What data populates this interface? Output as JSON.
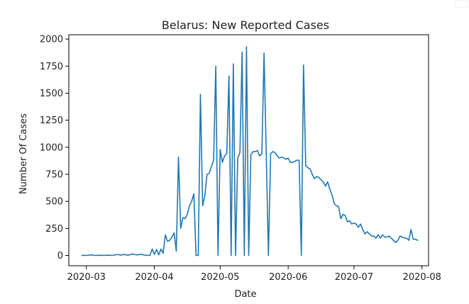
{
  "chart_data": {
    "type": "line",
    "title": "Belarus: New Reported Cases",
    "xlabel": "Date",
    "ylabel": "Number Of Cases",
    "x_ticks": [
      "2020-03",
      "2020-04",
      "2020-05",
      "2020-06",
      "2020-07",
      "2020-08"
    ],
    "y_ticks": [
      0,
      250,
      500,
      750,
      1000,
      1250,
      1500,
      1750,
      2000
    ],
    "xlim": [
      "2020-02-22",
      "2020-08-04"
    ],
    "ylim": [
      -95,
      2040
    ],
    "grid": false,
    "legend": "none",
    "series": [
      {
        "color": "#1f77b4",
        "points": [
          [
            "2020-02-28",
            1
          ],
          [
            "2020-03-01",
            0
          ],
          [
            "2020-03-03",
            5
          ],
          [
            "2020-03-05",
            0
          ],
          [
            "2020-03-07",
            2
          ],
          [
            "2020-03-09",
            0
          ],
          [
            "2020-03-11",
            3
          ],
          [
            "2020-03-13",
            0
          ],
          [
            "2020-03-15",
            9
          ],
          [
            "2020-03-17",
            3
          ],
          [
            "2020-03-18",
            10
          ],
          [
            "2020-03-20",
            2
          ],
          [
            "2020-03-22",
            14
          ],
          [
            "2020-03-24",
            5
          ],
          [
            "2020-03-26",
            10
          ],
          [
            "2020-03-28",
            2
          ],
          [
            "2020-03-30",
            0
          ],
          [
            "2020-03-31",
            60
          ],
          [
            "2020-04-01",
            10
          ],
          [
            "2020-04-02",
            55
          ],
          [
            "2020-04-03",
            5
          ],
          [
            "2020-04-04",
            60
          ],
          [
            "2020-04-05",
            20
          ],
          [
            "2020-04-06",
            190
          ],
          [
            "2020-04-07",
            130
          ],
          [
            "2020-04-08",
            140
          ],
          [
            "2020-04-09",
            170
          ],
          [
            "2020-04-10",
            210
          ],
          [
            "2020-04-11",
            40
          ],
          [
            "2020-04-12",
            910
          ],
          [
            "2020-04-13",
            250
          ],
          [
            "2020-04-14",
            350
          ],
          [
            "2020-04-15",
            340
          ],
          [
            "2020-04-16",
            380
          ],
          [
            "2020-04-17",
            460
          ],
          [
            "2020-04-18",
            500
          ],
          [
            "2020-04-19",
            570
          ],
          [
            "2020-04-20",
            0
          ],
          [
            "2020-04-21",
            0
          ],
          [
            "2020-04-22",
            1490
          ],
          [
            "2020-04-23",
            460
          ],
          [
            "2020-04-24",
            550
          ],
          [
            "2020-04-25",
            750
          ],
          [
            "2020-04-26",
            760
          ],
          [
            "2020-04-27",
            820
          ],
          [
            "2020-04-28",
            880
          ],
          [
            "2020-04-29",
            1750
          ],
          [
            "2020-04-30",
            0
          ],
          [
            "2020-05-01",
            980
          ],
          [
            "2020-05-02",
            860
          ],
          [
            "2020-05-03",
            920
          ],
          [
            "2020-05-04",
            940
          ],
          [
            "2020-05-05",
            1660
          ],
          [
            "2020-05-06",
            0
          ],
          [
            "2020-05-07",
            1770
          ],
          [
            "2020-05-08",
            0
          ],
          [
            "2020-05-09",
            900
          ],
          [
            "2020-05-10",
            950
          ],
          [
            "2020-05-11",
            1880
          ],
          [
            "2020-05-12",
            0
          ],
          [
            "2020-05-13",
            1930
          ],
          [
            "2020-05-14",
            0
          ],
          [
            "2020-05-15",
            930
          ],
          [
            "2020-05-16",
            960
          ],
          [
            "2020-05-17",
            960
          ],
          [
            "2020-05-18",
            970
          ],
          [
            "2020-05-19",
            920
          ],
          [
            "2020-05-20",
            940
          ],
          [
            "2020-05-21",
            1870
          ],
          [
            "2020-05-22",
            940
          ],
          [
            "2020-05-23",
            0
          ],
          [
            "2020-05-24",
            940
          ],
          [
            "2020-05-25",
            960
          ],
          [
            "2020-05-26",
            950
          ],
          [
            "2020-05-27",
            920
          ],
          [
            "2020-05-28",
            900
          ],
          [
            "2020-05-29",
            910
          ],
          [
            "2020-05-30",
            900
          ],
          [
            "2020-05-31",
            890
          ],
          [
            "2020-06-01",
            900
          ],
          [
            "2020-06-02",
            860
          ],
          [
            "2020-06-03",
            860
          ],
          [
            "2020-06-04",
            870
          ],
          [
            "2020-06-05",
            880
          ],
          [
            "2020-06-06",
            880
          ],
          [
            "2020-06-07",
            0
          ],
          [
            "2020-06-08",
            1760
          ],
          [
            "2020-06-09",
            830
          ],
          [
            "2020-06-10",
            810
          ],
          [
            "2020-06-11",
            800
          ],
          [
            "2020-06-12",
            750
          ],
          [
            "2020-06-13",
            710
          ],
          [
            "2020-06-14",
            730
          ],
          [
            "2020-06-15",
            720
          ],
          [
            "2020-06-16",
            700
          ],
          [
            "2020-06-17",
            680
          ],
          [
            "2020-06-18",
            640
          ],
          [
            "2020-06-19",
            680
          ],
          [
            "2020-06-20",
            610
          ],
          [
            "2020-06-21",
            560
          ],
          [
            "2020-06-22",
            480
          ],
          [
            "2020-06-23",
            460
          ],
          [
            "2020-06-24",
            450
          ],
          [
            "2020-06-25",
            340
          ],
          [
            "2020-06-26",
            380
          ],
          [
            "2020-06-27",
            370
          ],
          [
            "2020-06-28",
            310
          ],
          [
            "2020-06-29",
            320
          ],
          [
            "2020-06-30",
            290
          ],
          [
            "2020-07-01",
            300
          ],
          [
            "2020-07-02",
            290
          ],
          [
            "2020-07-03",
            260
          ],
          [
            "2020-07-04",
            290
          ],
          [
            "2020-07-05",
            240
          ],
          [
            "2020-07-06",
            200
          ],
          [
            "2020-07-07",
            220
          ],
          [
            "2020-07-08",
            200
          ],
          [
            "2020-07-09",
            180
          ],
          [
            "2020-07-10",
            180
          ],
          [
            "2020-07-11",
            160
          ],
          [
            "2020-07-12",
            190
          ],
          [
            "2020-07-13",
            160
          ],
          [
            "2020-07-14",
            190
          ],
          [
            "2020-07-15",
            170
          ],
          [
            "2020-07-16",
            170
          ],
          [
            "2020-07-17",
            180
          ],
          [
            "2020-07-18",
            160
          ],
          [
            "2020-07-19",
            140
          ],
          [
            "2020-07-20",
            120
          ],
          [
            "2020-07-21",
            140
          ],
          [
            "2020-07-22",
            180
          ],
          [
            "2020-07-23",
            170
          ],
          [
            "2020-07-24",
            160
          ],
          [
            "2020-07-25",
            160
          ],
          [
            "2020-07-26",
            140
          ],
          [
            "2020-07-27",
            240
          ],
          [
            "2020-07-28",
            150
          ],
          [
            "2020-07-29",
            150
          ],
          [
            "2020-07-30",
            140
          ]
        ]
      }
    ]
  }
}
